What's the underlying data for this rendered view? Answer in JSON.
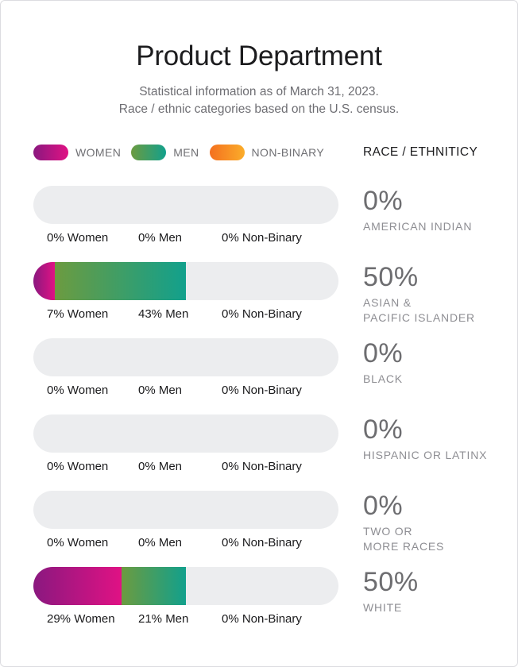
{
  "header": {
    "title": "Product Department",
    "subtitle_line1": "Statistical information as of March 31, 2023.",
    "subtitle_line2": "Race / ethnic categories based on the U.S. census."
  },
  "legend": {
    "women_label": "WOMEN",
    "men_label": "MEN",
    "nonbinary_label": "NON-BINARY",
    "race_header": "RACE / ETHNITICY"
  },
  "colors": {
    "women": {
      "start": "#8a187f",
      "end": "#e01284"
    },
    "men": {
      "start": "#6c9b40",
      "end": "#12a08c"
    },
    "nonbinary": {
      "start": "#f4701f",
      "end": "#fbad2a"
    },
    "track": "#ecedef",
    "percent_text": "#6d6d70",
    "category_text": "#8e8e93"
  },
  "rows": [
    {
      "women_pct": 0,
      "men_pct": 0,
      "nonbinary_pct": 0,
      "women_label": "0% Women",
      "men_label": "0% Men",
      "nonbinary_label": "0% Non-Binary",
      "total": "0%",
      "category": "AMERICAN INDIAN"
    },
    {
      "women_pct": 7,
      "men_pct": 43,
      "nonbinary_pct": 0,
      "women_label": "7% Women",
      "men_label": "43% Men",
      "nonbinary_label": "0% Non-Binary",
      "total": "50%",
      "category": "ASIAN &\nPACIFIC ISLANDER"
    },
    {
      "women_pct": 0,
      "men_pct": 0,
      "nonbinary_pct": 0,
      "women_label": "0% Women",
      "men_label": "0% Men",
      "nonbinary_label": "0% Non-Binary",
      "total": "0%",
      "category": "BLACK"
    },
    {
      "women_pct": 0,
      "men_pct": 0,
      "nonbinary_pct": 0,
      "women_label": "0% Women",
      "men_label": "0% Men",
      "nonbinary_label": "0% Non-Binary",
      "total": "0%",
      "category": "HISPANIC OR LATINX"
    },
    {
      "women_pct": 0,
      "men_pct": 0,
      "nonbinary_pct": 0,
      "women_label": "0% Women",
      "men_label": "0% Men",
      "nonbinary_label": "0% Non-Binary",
      "total": "0%",
      "category": "TWO OR\nMORE RACES"
    },
    {
      "women_pct": 29,
      "men_pct": 21,
      "nonbinary_pct": 0,
      "women_label": "29% Women",
      "men_label": "21% Men",
      "nonbinary_label": "0% Non-Binary",
      "total": "50%",
      "category": "WHITE"
    }
  ],
  "chart_data": {
    "type": "bar",
    "orientation": "horizontal-stacked",
    "title": "Product Department",
    "subtitle": "Statistical information as of March 31, 2023. Race / ethnic categories based on the U.S. census.",
    "categories": [
      "American Indian",
      "Asian & Pacific Islander",
      "Black",
      "Hispanic or Latinx",
      "Two or More Races",
      "White"
    ],
    "series": [
      {
        "name": "Women",
        "values": [
          0,
          7,
          0,
          0,
          0,
          29
        ],
        "color": "gradient #8a187f to #e01284"
      },
      {
        "name": "Men",
        "values": [
          0,
          43,
          0,
          0,
          0,
          21
        ],
        "color": "gradient #6c9b40 to #12a08c"
      },
      {
        "name": "Non-Binary",
        "values": [
          0,
          0,
          0,
          0,
          0,
          0
        ],
        "color": "gradient #f4701f to #fbad2a"
      }
    ],
    "totals_by_category": [
      0,
      50,
      0,
      0,
      0,
      50
    ],
    "xlim": [
      0,
      100
    ],
    "grid": false,
    "legend_position": "top-left",
    "value_unit": "%"
  }
}
